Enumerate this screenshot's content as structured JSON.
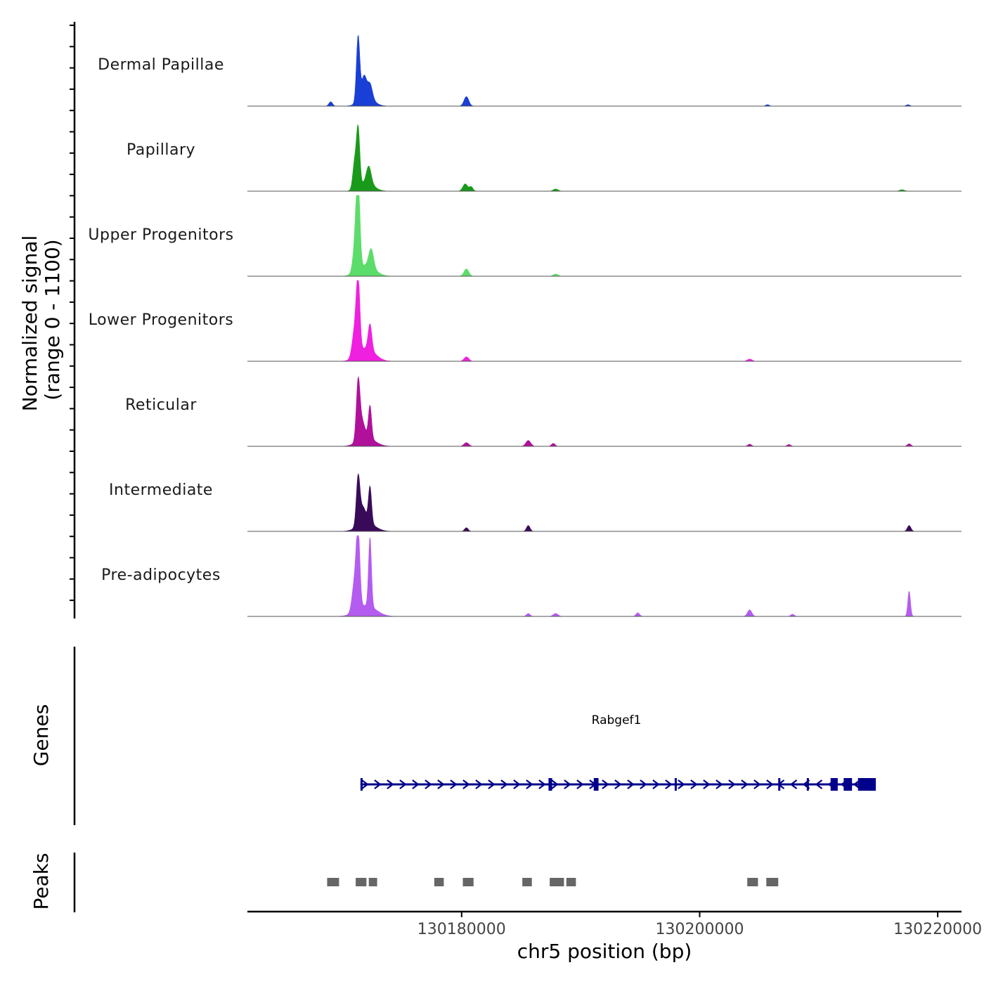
{
  "chart_data": {
    "type": "area",
    "coverage": {
      "ylabel_line1": "Normalized signal",
      "ylabel_line2": "(range 0 - 1100)",
      "ylim": [
        0,
        1100
      ],
      "xlim": [
        130162000,
        130222000
      ],
      "tracks": [
        {
          "name": "Dermal Papillae",
          "color": "#1a3fd6",
          "peaks": [
            {
              "pos": 130169000,
              "height": 60,
              "width": 150
            },
            {
              "pos": 130171300,
              "height": 900,
              "width": 140
            },
            {
              "pos": 130171800,
              "height": 300,
              "width": 200
            },
            {
              "pos": 130172300,
              "height": 200,
              "width": 200
            },
            {
              "pos": 130172000,
              "height": 120,
              "width": 600
            },
            {
              "pos": 130180400,
              "height": 130,
              "width": 200
            },
            {
              "pos": 130205700,
              "height": 20,
              "width": 150
            },
            {
              "pos": 130217500,
              "height": 20,
              "width": 150
            }
          ]
        },
        {
          "name": "Papillary",
          "color": "#1a9a1a",
          "peaks": [
            {
              "pos": 130171300,
              "height": 800,
              "width": 140
            },
            {
              "pos": 130171000,
              "height": 350,
              "width": 150
            },
            {
              "pos": 130172200,
              "height": 230,
              "width": 200
            },
            {
              "pos": 130172000,
              "height": 120,
              "width": 600
            },
            {
              "pos": 130180300,
              "height": 100,
              "width": 200
            },
            {
              "pos": 130180800,
              "height": 60,
              "width": 150
            },
            {
              "pos": 130187900,
              "height": 30,
              "width": 200
            },
            {
              "pos": 130217000,
              "height": 20,
              "width": 200
            }
          ]
        },
        {
          "name": "Upper Progenitors",
          "color": "#5cdc6a",
          "peaks": [
            {
              "pos": 130171300,
              "height": 1100,
              "width": 150
            },
            {
              "pos": 130171100,
              "height": 450,
              "width": 200
            },
            {
              "pos": 130172400,
              "height": 250,
              "width": 200
            },
            {
              "pos": 130172000,
              "height": 150,
              "width": 700
            },
            {
              "pos": 130180400,
              "height": 100,
              "width": 200
            },
            {
              "pos": 130187900,
              "height": 30,
              "width": 200
            }
          ]
        },
        {
          "name": "Lower Progenitors",
          "color": "#f020e0",
          "peaks": [
            {
              "pos": 130171300,
              "height": 1000,
              "width": 150
            },
            {
              "pos": 130171000,
              "height": 350,
              "width": 200
            },
            {
              "pos": 130172300,
              "height": 350,
              "width": 150
            },
            {
              "pos": 130172000,
              "height": 180,
              "width": 700
            },
            {
              "pos": 130180400,
              "height": 60,
              "width": 200
            },
            {
              "pos": 130204200,
              "height": 30,
              "width": 200
            }
          ]
        },
        {
          "name": "Reticular",
          "color": "#b0109a",
          "peaks": [
            {
              "pos": 130171300,
              "height": 750,
              "width": 150
            },
            {
              "pos": 130172300,
              "height": 450,
              "width": 130
            },
            {
              "pos": 130171600,
              "height": 250,
              "width": 250
            },
            {
              "pos": 130172000,
              "height": 120,
              "width": 700
            },
            {
              "pos": 130180400,
              "height": 50,
              "width": 200
            },
            {
              "pos": 130185600,
              "height": 80,
              "width": 200
            },
            {
              "pos": 130187700,
              "height": 40,
              "width": 150
            },
            {
              "pos": 130204200,
              "height": 30,
              "width": 150
            },
            {
              "pos": 130207500,
              "height": 25,
              "width": 150
            },
            {
              "pos": 130217600,
              "height": 35,
              "width": 150
            }
          ]
        },
        {
          "name": "Intermediate",
          "color": "#3a0a5a",
          "peaks": [
            {
              "pos": 130171300,
              "height": 650,
              "width": 150
            },
            {
              "pos": 130172300,
              "height": 500,
              "width": 130
            },
            {
              "pos": 130171700,
              "height": 220,
              "width": 250
            },
            {
              "pos": 130172000,
              "height": 120,
              "width": 700
            },
            {
              "pos": 130180400,
              "height": 50,
              "width": 150
            },
            {
              "pos": 130185600,
              "height": 80,
              "width": 150
            },
            {
              "pos": 130217600,
              "height": 80,
              "width": 150
            }
          ]
        },
        {
          "name": "Pre-adipocytes",
          "color": "#b45cf0",
          "peaks": [
            {
              "pos": 130171300,
              "height": 1050,
              "width": 150
            },
            {
              "pos": 130172300,
              "height": 950,
              "width": 120
            },
            {
              "pos": 130171000,
              "height": 400,
              "width": 200
            },
            {
              "pos": 130172000,
              "height": 150,
              "width": 800
            },
            {
              "pos": 130185600,
              "height": 40,
              "width": 150
            },
            {
              "pos": 130187900,
              "height": 40,
              "width": 200
            },
            {
              "pos": 130194800,
              "height": 50,
              "width": 150
            },
            {
              "pos": 130204200,
              "height": 90,
              "width": 180
            },
            {
              "pos": 130207800,
              "height": 30,
              "width": 150
            },
            {
              "pos": 130217600,
              "height": 350,
              "width": 110
            }
          ]
        }
      ]
    },
    "genes": {
      "ylabel": "Genes",
      "strand_color": "#00008b",
      "items": [
        {
          "name": "Rabgef1",
          "start": 130171500,
          "end": 130206700,
          "strand": "+",
          "exons": [
            [
              130171500,
              130171600
            ],
            [
              130187300,
              130187600
            ],
            [
              130191100,
              130191500
            ],
            [
              130197900,
              130198000
            ]
          ]
        },
        {
          "name": "",
          "start": 130206500,
          "end": 130214800,
          "strand": "-",
          "exons": [
            [
              130206600,
              130206700
            ],
            [
              130209000,
              130209100
            ],
            [
              130211000,
              130211600
            ],
            [
              130212100,
              130212800
            ],
            [
              130213300,
              130214800
            ]
          ]
        }
      ]
    },
    "peaks": {
      "ylabel": "Peaks",
      "color": "#666666",
      "regions": [
        [
          130168700,
          130169700
        ],
        [
          130171100,
          130172000
        ],
        [
          130172200,
          130172900
        ],
        [
          130177700,
          130178500
        ],
        [
          130180100,
          130181000
        ],
        [
          130185100,
          130185900
        ],
        [
          130187400,
          130188600
        ],
        [
          130188800,
          130189600
        ],
        [
          130204000,
          130204900
        ],
        [
          130205600,
          130206600
        ]
      ]
    },
    "xaxis": {
      "label": "chr5 position (bp)",
      "ticks": [
        130180000,
        130200000,
        130220000
      ],
      "tick_labels": [
        "130180000",
        "130200000",
        "130220000"
      ]
    }
  }
}
